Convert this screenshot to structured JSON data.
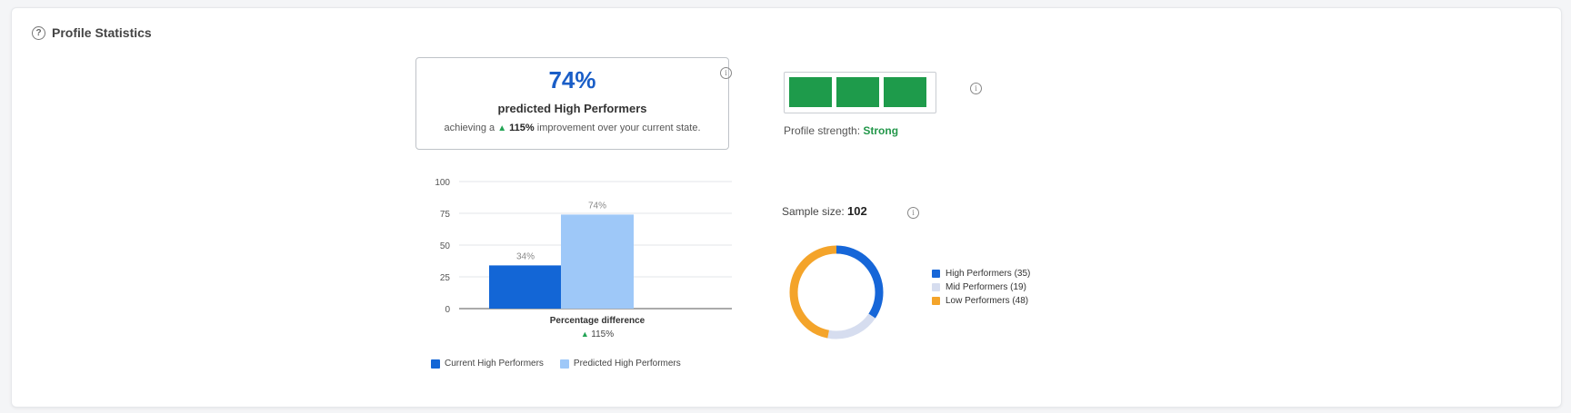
{
  "header": {
    "title": "Profile Statistics"
  },
  "prediction": {
    "percent": "74%",
    "label": "predicted High Performers",
    "sub_prefix": "achieving a",
    "sub_arrow": "▲",
    "sub_value": "115%",
    "sub_suffix": "improvement over your current state."
  },
  "strength": {
    "label": "Profile strength:",
    "value": "Strong",
    "segments_filled": 3,
    "segments_total": 3,
    "color": "#1e9b4b"
  },
  "sample": {
    "label": "Sample size:",
    "value": "102"
  },
  "chart_data": [
    {
      "type": "bar",
      "categories": [
        "Current High Performers",
        "Predicted High Performers"
      ],
      "values": [
        34,
        74
      ],
      "data_labels": [
        "34%",
        "74%"
      ],
      "colors": [
        "#1366d6",
        "#9ec8f8"
      ],
      "ylim": [
        0,
        100
      ],
      "yticks": [
        0,
        25,
        50,
        75,
        100
      ],
      "annotation": {
        "label": "Percentage difference",
        "arrow": "▲",
        "value": "115%"
      },
      "legend": [
        "Current High Performers",
        "Predicted High Performers"
      ],
      "legend_position": "bottom",
      "grid": true
    },
    {
      "type": "pie",
      "style": "donut",
      "labels": [
        "High Performers (35)",
        "Mid Performers (19)",
        "Low Performers (48)"
      ],
      "values": [
        35,
        19,
        48
      ],
      "colors": [
        "#1666d8",
        "#d6ddef",
        "#f4a42a"
      ],
      "legend_position": "right"
    }
  ]
}
